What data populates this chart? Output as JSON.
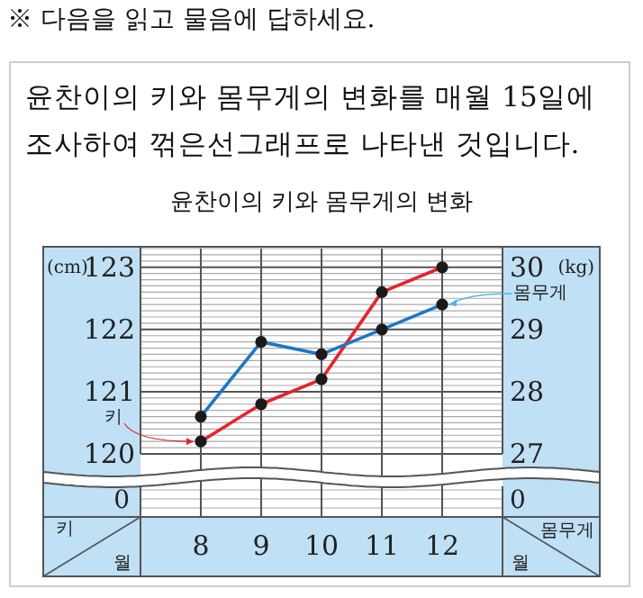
{
  "chart_data": {
    "type": "line",
    "title": "윤찬이의 키와 몸무게의 변화",
    "xlabel": "월",
    "ylabel": "(cm)",
    "y2label": "(kg)",
    "categories": [
      "8",
      "9",
      "10",
      "11",
      "12"
    ],
    "series": [
      {
        "name": "키",
        "color": "#e5242b",
        "values": [
          120.2,
          120.8,
          121.2,
          122.6,
          123.0
        ]
      },
      {
        "name": "몸무게",
        "color": "#1f77c4",
        "axis": "y2",
        "values": [
          27.6,
          28.8,
          28.6,
          29.0,
          29.4
        ]
      }
    ],
    "ylim": [
      120,
      123.3
    ],
    "yticks": [
      120,
      121,
      122,
      123
    ],
    "y2lim": [
      27,
      30.3
    ],
    "y2ticks": [
      27,
      28,
      29,
      30
    ],
    "grid": true,
    "marker": "circle",
    "line_style": "solid",
    "annotations": [
      "※ 다음을 읽고 물음에 답하세요.",
      "윤찬이의 키와 몸무게의 변화를 매월 15일에 조사하여 꺾은선그래프로 나타낸 것입니다.",
      "0",
      "0"
    ]
  }
}
